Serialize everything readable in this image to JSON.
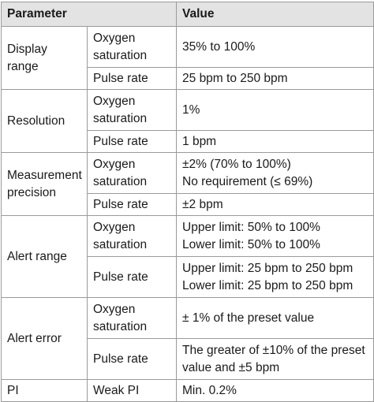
{
  "header": {
    "parameter": "Parameter",
    "value": "Value"
  },
  "rows": {
    "display_range": {
      "label": "Display range",
      "oxygen": {
        "sub": [
          "Oxygen",
          "saturation"
        ],
        "value": [
          "35% to 100%"
        ]
      },
      "pulse": {
        "sub": [
          "Pulse rate"
        ],
        "value": [
          "25 bpm to 250 bpm"
        ]
      }
    },
    "resolution": {
      "label": "Resolution",
      "oxygen": {
        "sub": [
          "Oxygen",
          "saturation"
        ],
        "value": [
          "1%"
        ]
      },
      "pulse": {
        "sub": [
          "Pulse rate"
        ],
        "value": [
          "1 bpm"
        ]
      }
    },
    "measurement_precision": {
      "label": [
        "Measurement",
        "precision"
      ],
      "oxygen": {
        "sub": [
          "Oxygen",
          "saturation"
        ],
        "value": [
          "±2% (70% to 100%)",
          "No requirement (≤ 69%)"
        ]
      },
      "pulse": {
        "sub": [
          "Pulse rate"
        ],
        "value": [
          "±2 bpm"
        ]
      }
    },
    "alert_range": {
      "label": "Alert range",
      "oxygen": {
        "sub": [
          "Oxygen",
          "saturation"
        ],
        "value": [
          "Upper limit: 50% to 100%",
          "Lower limit: 50% to 100%"
        ]
      },
      "pulse": {
        "sub": [
          "Pulse rate"
        ],
        "value": [
          "Upper limit: 25 bpm to 250 bpm",
          "Lower limit: 25 bpm to 250 bpm"
        ]
      }
    },
    "alert_error": {
      "label": "Alert error",
      "oxygen": {
        "sub": [
          "Oxygen",
          "saturation"
        ],
        "value": [
          "± 1% of the preset value"
        ]
      },
      "pulse": {
        "sub": [
          "Pulse rate"
        ],
        "value": [
          "The greater of ±10% of the preset",
          "value and ±5 bpm"
        ]
      }
    },
    "pi": {
      "label": "PI",
      "weak": {
        "sub": [
          "Weak PI"
        ],
        "value": [
          "Min. 0.2%"
        ]
      }
    }
  }
}
